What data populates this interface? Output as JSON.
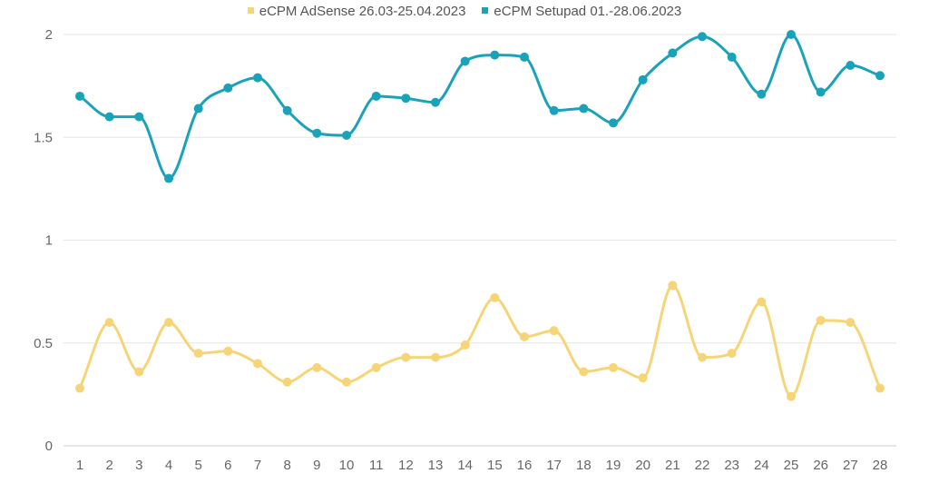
{
  "chart_data": {
    "type": "line",
    "title": "",
    "xlabel": "",
    "ylabel": "",
    "x": [
      1,
      2,
      3,
      4,
      5,
      6,
      7,
      8,
      9,
      10,
      11,
      12,
      13,
      14,
      15,
      16,
      17,
      18,
      19,
      20,
      21,
      22,
      23,
      24,
      25,
      26,
      27,
      28
    ],
    "x_tick_labels": [
      "1",
      "2",
      "3",
      "4",
      "5",
      "6",
      "7",
      "8",
      "9",
      "10",
      "11",
      "12",
      "13",
      "14",
      "15",
      "16",
      "17",
      "18",
      "19",
      "20",
      "21",
      "22",
      "23",
      "24",
      "25",
      "26",
      "27",
      "28"
    ],
    "ylim": [
      0,
      2
    ],
    "y_ticks": [
      0,
      0.5,
      1,
      1.5,
      2
    ],
    "y_tick_labels": [
      "0",
      "0.5",
      "1",
      "1.5",
      "2"
    ],
    "grid": true,
    "legend_position": "top-center",
    "series": [
      {
        "name": "eCPM AdSense 26.03-25.04.2023",
        "color": "#f6d579",
        "values": [
          0.28,
          0.6,
          0.36,
          0.6,
          0.45,
          0.46,
          0.4,
          0.31,
          0.38,
          0.31,
          0.38,
          0.43,
          0.43,
          0.49,
          0.72,
          0.53,
          0.56,
          0.36,
          0.38,
          0.33,
          0.78,
          0.43,
          0.45,
          0.7,
          0.24,
          0.61,
          0.6,
          0.28
        ]
      },
      {
        "name": "eCPM Setupad 01.-28.06.2023",
        "color": "#1aa3b8",
        "values": [
          1.7,
          1.6,
          1.6,
          1.3,
          1.64,
          1.74,
          1.79,
          1.63,
          1.52,
          1.51,
          1.7,
          1.69,
          1.67,
          1.87,
          1.9,
          1.89,
          1.63,
          1.64,
          1.57,
          1.78,
          1.91,
          1.99,
          1.89,
          1.71,
          2.0,
          1.72,
          1.85,
          1.8
        ]
      }
    ]
  }
}
